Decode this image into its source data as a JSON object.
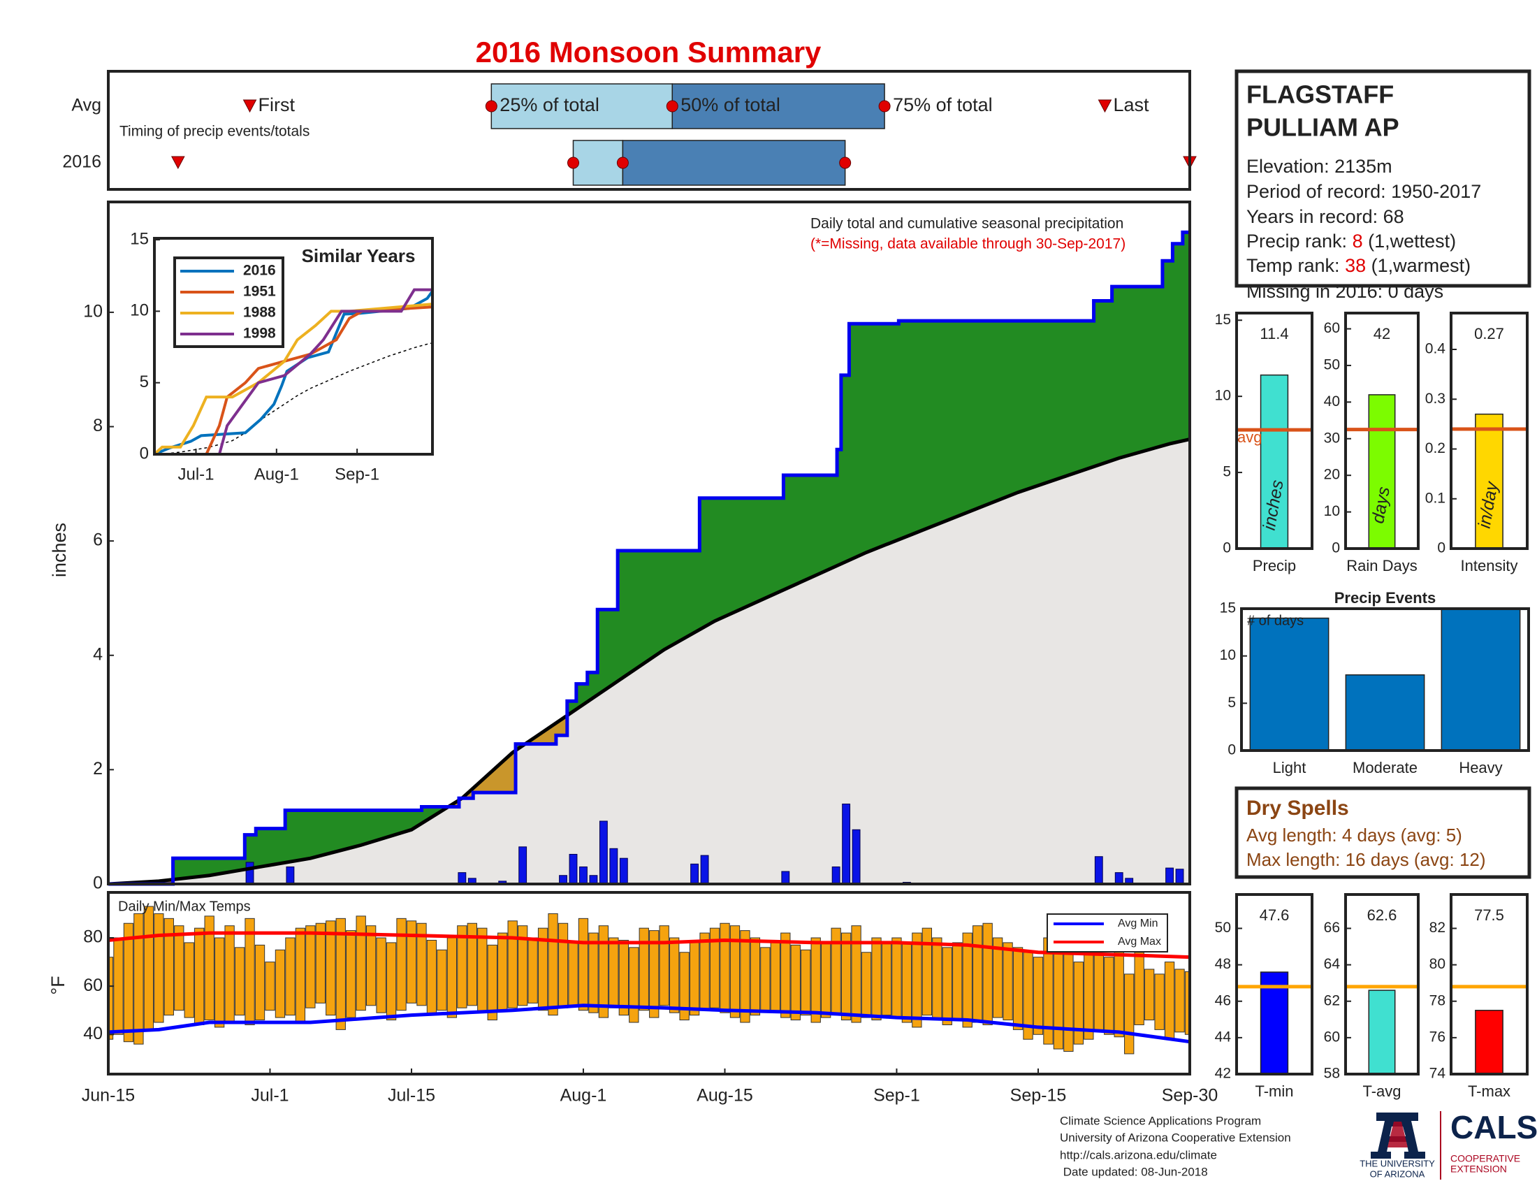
{
  "title": "2016 Monsoon Summary",
  "chart_data": [
    {
      "type": "timeline",
      "subtitle": "Timing of precip events/totals",
      "xlim": [
        0,
        107
      ],
      "rows": [
        {
          "name": "Avg",
          "first": 14,
          "p25": 37.9,
          "p50": 55.8,
          "p75": 76.8,
          "last": 98.6
        },
        {
          "name": "2016",
          "first": 6.9,
          "p25": 46,
          "p50": 50.9,
          "p75": 72.9,
          "last": 107
        }
      ],
      "marker_labels": {
        "first": "First",
        "p25": "25% of total",
        "p50": "50% of total",
        "p75": "75% of total",
        "last": "Last"
      },
      "colors": {
        "early": "#a8d5e6",
        "late": "#4a80b4",
        "marker": "#e00000"
      }
    },
    {
      "type": "cumulative",
      "ylabel": "inches",
      "note": "Daily total and cumulative seasonal precipitation",
      "note2": "(*=Missing, data available through 30-Sep-2017)",
      "xlim": [
        0,
        107
      ],
      "ylim": [
        0,
        11.93
      ],
      "yticks": [
        0,
        2,
        4,
        6,
        8,
        10
      ],
      "observed": {
        "color": "#0000ee",
        "x": [
          0,
          6.4,
          6.4,
          13.5,
          13.5,
          14.6,
          14.6,
          17.5,
          17.5,
          31,
          31,
          34.7,
          34.7,
          36.1,
          36.1,
          40.3,
          40.3,
          44.3,
          44.3,
          45.4,
          45.4,
          46.3,
          46.3,
          47.4,
          47.4,
          48.4,
          48.4,
          50.4,
          50.4,
          58.5,
          58.5,
          66.8,
          66.8,
          72.1,
          72.1,
          72.5,
          72.5,
          73.3,
          73.3,
          78.2,
          78.2,
          97.5,
          97.5,
          99.3,
          99.3,
          104.3,
          104.3,
          105.3,
          105.3,
          106.3,
          106.3,
          107
        ],
        "values": [
          0,
          0,
          0.45,
          0.45,
          0.86,
          0.86,
          0.97,
          0.97,
          1.29,
          1.29,
          1.35,
          1.35,
          1.5,
          1.5,
          1.6,
          1.6,
          2.45,
          2.45,
          2.6,
          2.6,
          3.2,
          3.2,
          3.5,
          3.5,
          3.7,
          3.7,
          4.8,
          4.8,
          5.83,
          5.83,
          6.75,
          6.75,
          7.15,
          7.15,
          7.6,
          7.6,
          8.9,
          8.9,
          9.8,
          9.8,
          9.85,
          9.85,
          10.2,
          10.2,
          10.45,
          10.45,
          10.9,
          10.9,
          11.2,
          11.2,
          11.4,
          11.4
        ]
      },
      "average": {
        "color": "#000000",
        "x": [
          0,
          5,
          10,
          15,
          20,
          25,
          30,
          35,
          40,
          45,
          50,
          55,
          60,
          65,
          70,
          75,
          80,
          85,
          90,
          95,
          100,
          105,
          107
        ],
        "values": [
          0,
          0.05,
          0.15,
          0.3,
          0.45,
          0.68,
          0.95,
          1.5,
          2.3,
          2.9,
          3.5,
          4.1,
          4.6,
          5.0,
          5.4,
          5.8,
          6.15,
          6.5,
          6.85,
          7.15,
          7.45,
          7.7,
          7.78
        ]
      },
      "daily": {
        "color": "#0a14e6",
        "x": [
          14,
          18,
          35,
          36,
          39,
          41,
          45,
          46,
          47,
          48,
          49,
          50,
          51,
          58,
          59,
          67,
          72,
          73,
          74,
          79,
          98,
          100,
          101,
          105,
          106
        ],
        "values": [
          0.38,
          0.3,
          0.2,
          0.1,
          0.05,
          0.65,
          0.15,
          0.52,
          0.3,
          0.15,
          1.1,
          0.62,
          0.45,
          0.35,
          0.5,
          0.22,
          0.3,
          1.4,
          0.95,
          0.03,
          0.48,
          0.2,
          0.1,
          0.28,
          0.26
        ]
      },
      "fill_colors": {
        "above": "#228b22",
        "below": "#c9962b",
        "base": "#e8e6e4"
      }
    },
    {
      "type": "line",
      "title": "Similar Years",
      "xlim": [
        0,
        107
      ],
      "xticks": [
        {
          "value": 16,
          "label": "Jul-1"
        },
        {
          "value": 47,
          "label": "Aug-1"
        },
        {
          "value": 78,
          "label": "Sep-1"
        }
      ],
      "ylim": [
        0,
        15.1
      ],
      "yticks": [
        0,
        5,
        10,
        15
      ],
      "series": [
        {
          "name": "2016",
          "color": "#0072bd",
          "x": [
            0,
            6,
            14,
            18,
            35,
            41,
            46,
            49,
            51,
            59,
            67,
            73,
            79,
            98,
            105,
            107
          ],
          "values": [
            0,
            0.45,
            0.9,
            1.3,
            1.5,
            2.45,
            3.5,
            4.8,
            5.8,
            6.75,
            7.15,
            9.8,
            9.85,
            10.2,
            10.9,
            11.4
          ]
        },
        {
          "name": "1951",
          "color": "#d95319",
          "x": [
            0,
            20,
            25,
            28,
            35,
            40,
            50,
            60,
            70,
            75,
            80,
            107
          ],
          "values": [
            0,
            0,
            2,
            4,
            5,
            6,
            6.5,
            7,
            8,
            9.5,
            10,
            10.3
          ]
        },
        {
          "name": "1988",
          "color": "#edb120",
          "x": [
            0,
            3,
            10,
            15,
            20,
            30,
            40,
            50,
            55,
            62,
            68,
            75,
            107
          ],
          "values": [
            0,
            0.5,
            0.5,
            2,
            4,
            4,
            5,
            6.5,
            8,
            9,
            10,
            10,
            10.5
          ]
        },
        {
          "name": "1998",
          "color": "#7e2f8e",
          "x": [
            0,
            25,
            28,
            32,
            40,
            50,
            60,
            65,
            72,
            80,
            95,
            100,
            107
          ],
          "values": [
            0,
            0,
            2,
            3,
            5,
            5.5,
            7,
            8,
            10,
            10,
            10,
            11.5,
            11.5
          ]
        }
      ]
    },
    {
      "type": "range-bar",
      "title": "Daily Min/Max Temps",
      "ylabel": "°F",
      "xlim": [
        0,
        107
      ],
      "xticks": [
        {
          "value": 0,
          "label": "Jun-15"
        },
        {
          "value": 16,
          "label": "Jul-1"
        },
        {
          "value": 30,
          "label": "Jul-15"
        },
        {
          "value": 47,
          "label": "Aug-1"
        },
        {
          "value": 61,
          "label": "Aug-15"
        },
        {
          "value": 78,
          "label": "Sep-1"
        },
        {
          "value": 92,
          "label": "Sep-15"
        },
        {
          "value": 107,
          "label": "Sep-30"
        }
      ],
      "ylim": [
        23.6,
        98.8
      ],
      "yticks": [
        40,
        60,
        80
      ],
      "color": "#f5a30f",
      "x": [
        0,
        1,
        2,
        3,
        4,
        5,
        6,
        7,
        8,
        9,
        10,
        11,
        12,
        13,
        14,
        15,
        16,
        17,
        18,
        19,
        20,
        21,
        22,
        23,
        24,
        25,
        26,
        27,
        28,
        29,
        30,
        31,
        32,
        33,
        34,
        35,
        36,
        37,
        38,
        39,
        40,
        41,
        42,
        43,
        44,
        45,
        46,
        47,
        48,
        49,
        50,
        51,
        52,
        53,
        54,
        55,
        56,
        57,
        58,
        59,
        60,
        61,
        62,
        63,
        64,
        65,
        66,
        67,
        68,
        69,
        70,
        71,
        72,
        73,
        74,
        75,
        76,
        77,
        78,
        79,
        80,
        81,
        82,
        83,
        84,
        85,
        86,
        87,
        88,
        89,
        90,
        91,
        92,
        93,
        94,
        95,
        96,
        97,
        98,
        99,
        100,
        101,
        102,
        103,
        104,
        105,
        106,
        107
      ],
      "min": [
        38,
        40,
        37,
        36,
        42,
        45,
        48,
        50,
        47,
        44,
        46,
        43,
        45,
        48,
        44,
        46,
        50,
        47,
        48,
        45,
        51,
        53,
        48,
        42,
        47,
        50,
        52,
        49,
        46,
        50,
        53,
        52,
        48,
        50,
        47,
        51,
        52,
        49,
        46,
        50,
        51,
        52,
        53,
        50,
        48,
        51,
        52,
        50,
        49,
        47,
        51,
        48,
        45,
        50,
        47,
        52,
        49,
        46,
        48,
        50,
        51,
        49,
        47,
        45,
        48,
        50,
        49,
        47,
        46,
        48,
        45,
        47,
        48,
        46,
        45,
        47,
        46,
        48,
        47,
        45,
        43,
        48,
        46,
        44,
        46,
        43,
        45,
        44,
        47,
        46,
        42,
        38,
        40,
        36,
        34,
        33,
        36,
        38,
        42,
        40,
        39,
        32,
        44,
        46,
        42,
        38,
        41,
        40
      ],
      "max": [
        72,
        80,
        86,
        90,
        93,
        90,
        88,
        85,
        78,
        84,
        89,
        80,
        85,
        76,
        88,
        77,
        70,
        75,
        80,
        84,
        85,
        86,
        87,
        88,
        83,
        89,
        85,
        80,
        78,
        88,
        87,
        86,
        79,
        75,
        80,
        85,
        86,
        84,
        77,
        82,
        87,
        85,
        80,
        84,
        90,
        86,
        78,
        88,
        82,
        85,
        80,
        79,
        76,
        84,
        83,
        85,
        80,
        74,
        78,
        82,
        84,
        86,
        85,
        83,
        80,
        76,
        78,
        82,
        77,
        75,
        80,
        78,
        84,
        82,
        85,
        74,
        80,
        78,
        80,
        78,
        82,
        84,
        80,
        76,
        78,
        82,
        85,
        86,
        80,
        78,
        76,
        74,
        72,
        80,
        78,
        75,
        70,
        78,
        73,
        72,
        75,
        65,
        74,
        67,
        65,
        70,
        67,
        66
      ],
      "lines": [
        {
          "name": "Avg Min",
          "color": "#0000ff",
          "x": [
            0,
            5,
            10,
            20,
            30,
            40,
            47,
            55,
            61,
            70,
            78,
            85,
            92,
            100,
            107
          ],
          "values": [
            41,
            42,
            45,
            45,
            48,
            50,
            52,
            51,
            50,
            49,
            47,
            46,
            43,
            41,
            37
          ]
        },
        {
          "name": "Avg Max",
          "color": "#ff0000",
          "x": [
            0,
            5,
            10,
            20,
            30,
            40,
            47,
            55,
            61,
            70,
            78,
            85,
            92,
            100,
            107
          ],
          "values": [
            79,
            81,
            82,
            82,
            81,
            80,
            78,
            78,
            79,
            78,
            78,
            77,
            74,
            73,
            72
          ]
        }
      ]
    },
    {
      "type": "bar",
      "categories": [
        "Precip"
      ],
      "values": [
        11.4
      ],
      "show_values": true,
      "avg": 7.8,
      "avg_label": "avg",
      "avg_color": "#d95319",
      "unit": "inches",
      "color": "#40e0d0",
      "ylim": [
        0,
        15.47
      ],
      "yticks": [
        0,
        5,
        10,
        15
      ]
    },
    {
      "type": "bar",
      "categories": [
        "Rain Days"
      ],
      "values": [
        42
      ],
      "show_values": true,
      "avg": 32.5,
      "avg_color": "#d95319",
      "unit": "days",
      "color": "#7cfc00",
      "ylim": [
        0,
        64.3
      ],
      "yticks": [
        0,
        10,
        20,
        30,
        40,
        50,
        60
      ]
    },
    {
      "type": "bar",
      "categories": [
        "Intensity"
      ],
      "values": [
        0.27
      ],
      "show_values": true,
      "avg": 0.24,
      "avg_color": "#d95319",
      "unit": "in/day",
      "color": "#ffd700",
      "ylim": [
        0,
        0.473
      ],
      "yticks": [
        0,
        0.1,
        0.2,
        0.3,
        0.4
      ]
    },
    {
      "type": "bar",
      "title": "Precip Events",
      "note": "# of days",
      "categories": [
        "Light",
        "Moderate",
        "Heavy"
      ],
      "values": [
        14,
        8,
        15
      ],
      "color": "#0072bd",
      "ylim": [
        0,
        15
      ],
      "yticks": [
        0,
        5,
        10,
        15
      ]
    },
    {
      "type": "bar",
      "categories": [
        "T-min"
      ],
      "values": [
        47.6
      ],
      "show_values": true,
      "avg": 46.8,
      "avg_color": "#ffa500",
      "color": "#0000ff",
      "ylim": [
        42,
        51.86
      ],
      "yticks": [
        42,
        44,
        46,
        48,
        50
      ]
    },
    {
      "type": "bar",
      "categories": [
        "T-avg"
      ],
      "values": [
        62.6
      ],
      "show_values": true,
      "avg": 62.8,
      "avg_color": "#ffa500",
      "color": "#40e0d0",
      "ylim": [
        58,
        67.86
      ],
      "yticks": [
        58,
        60,
        62,
        64,
        66
      ]
    },
    {
      "type": "bar",
      "categories": [
        "T-max"
      ],
      "values": [
        77.5
      ],
      "show_values": true,
      "avg": 78.8,
      "avg_color": "#ffa500",
      "color": "#ff0000",
      "ylim": [
        74,
        83.86
      ],
      "yticks": [
        74,
        76,
        78,
        80,
        82
      ]
    }
  ],
  "station": {
    "name_line1": "FLAGSTAFF",
    "name_line2": "PULLIAM AP",
    "elevation": "Elevation: 2135m",
    "period": "Period of record: 1950-2017",
    "years": "Years in record: 68",
    "precip_rank": {
      "label": "Precip rank:",
      "value": 8,
      "note": "(1,wettest)"
    },
    "temp_rank": {
      "label": "Temp rank:",
      "value": 38,
      "note": "(1,warmest)"
    },
    "missing": "Missing in 2016: 0 days"
  },
  "dry_spells": {
    "title": "Dry Spells",
    "avg_length": "Avg length: 4 days (avg: 5)",
    "max_length": "Max length: 16 days (avg: 12)"
  },
  "footer": {
    "lines": [
      "Climate Science Applications Program",
      "University of Arizona Cooperative Extension",
      "http://cals.arizona.edu/climate",
      " Date updated: 08-Jun-2018"
    ],
    "university": [
      "THE UNIVERSITY",
      "OF ARIZONA"
    ],
    "cals": "CALS",
    "extension": [
      "COOPERATIVE",
      "EXTENSION"
    ]
  }
}
